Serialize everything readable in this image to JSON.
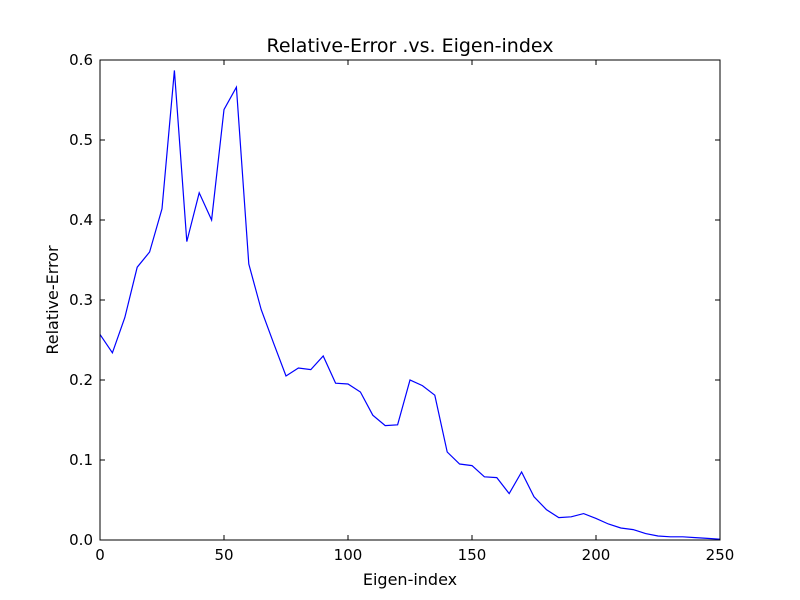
{
  "chart_data": {
    "type": "line",
    "title": "Relative-Error .vs. Eigen-index",
    "xlabel": "Eigen-index",
    "ylabel": "Relative-Error",
    "xlim": [
      0,
      250
    ],
    "ylim": [
      0.0,
      0.6
    ],
    "xticks": [
      0,
      50,
      100,
      150,
      200,
      250
    ],
    "xtick_labels": [
      "0",
      "50",
      "100",
      "150",
      "200",
      "250"
    ],
    "yticks": [
      0.0,
      0.1,
      0.2,
      0.3,
      0.4,
      0.5,
      0.6
    ],
    "ytick_labels": [
      "0.0",
      "0.1",
      "0.2",
      "0.3",
      "0.4",
      "0.5",
      "0.6"
    ],
    "grid": false,
    "series": [
      {
        "color": "#0000ff",
        "x": [
          0,
          5,
          10,
          15,
          20,
          25,
          30,
          35,
          40,
          45,
          50,
          55,
          60,
          65,
          70,
          75,
          80,
          85,
          90,
          95,
          100,
          105,
          110,
          115,
          120,
          125,
          130,
          135,
          140,
          145,
          150,
          155,
          160,
          165,
          170,
          175,
          180,
          185,
          190,
          195,
          200,
          205,
          210,
          215,
          220,
          225,
          230,
          235,
          240,
          245,
          250
        ],
        "y": [
          0.257,
          0.234,
          0.278,
          0.341,
          0.36,
          0.414,
          0.587,
          0.373,
          0.434,
          0.4,
          0.538,
          0.566,
          0.345,
          0.288,
          0.246,
          0.205,
          0.215,
          0.213,
          0.23,
          0.196,
          0.195,
          0.185,
          0.156,
          0.143,
          0.144,
          0.2,
          0.193,
          0.181,
          0.11,
          0.095,
          0.093,
          0.079,
          0.078,
          0.058,
          0.085,
          0.054,
          0.038,
          0.028,
          0.029,
          0.033,
          0.027,
          0.02,
          0.015,
          0.013,
          0.008,
          0.005,
          0.004,
          0.004,
          0.003,
          0.002,
          0.001
        ]
      }
    ]
  }
}
